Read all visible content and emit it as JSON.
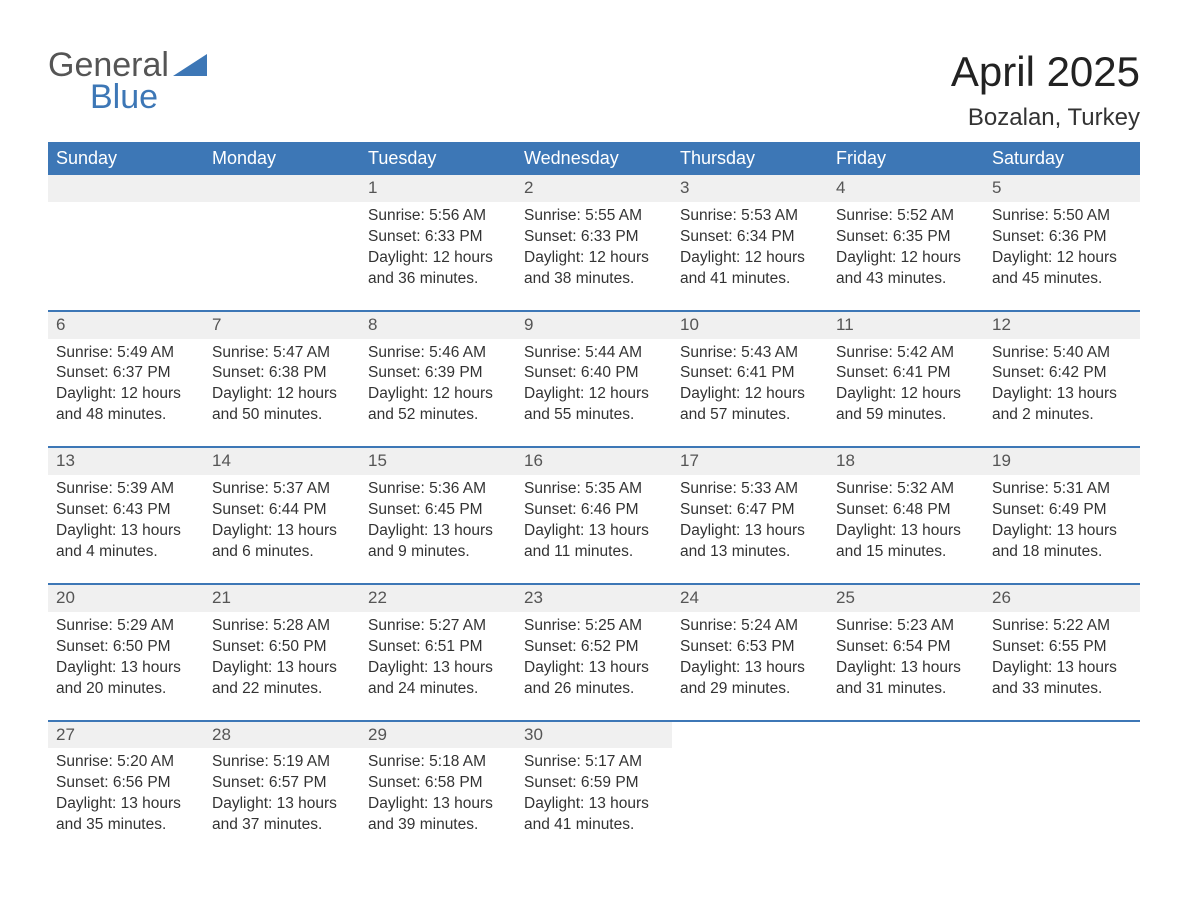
{
  "logo": {
    "line1": "General",
    "line2": "Blue",
    "brand_color": "#3d77b6",
    "gray": "#555555"
  },
  "title": "April 2025",
  "subtitle": "Bozalan, Turkey",
  "header_bg": "#3d77b6",
  "header_fg": "#ffffff",
  "daynum_bg": "#f0f0f0",
  "text_color": "#333333",
  "row_border_color": "#3d77b6",
  "title_fontsize": 42,
  "subtitle_fontsize": 24,
  "days_of_week": [
    "Sunday",
    "Monday",
    "Tuesday",
    "Wednesday",
    "Thursday",
    "Friday",
    "Saturday"
  ],
  "weeks": [
    [
      null,
      null,
      {
        "n": "1",
        "sunrise": "Sunrise: 5:56 AM",
        "sunset": "Sunset: 6:33 PM",
        "d1": "Daylight: 12 hours",
        "d2": "and 36 minutes."
      },
      {
        "n": "2",
        "sunrise": "Sunrise: 5:55 AM",
        "sunset": "Sunset: 6:33 PM",
        "d1": "Daylight: 12 hours",
        "d2": "and 38 minutes."
      },
      {
        "n": "3",
        "sunrise": "Sunrise: 5:53 AM",
        "sunset": "Sunset: 6:34 PM",
        "d1": "Daylight: 12 hours",
        "d2": "and 41 minutes."
      },
      {
        "n": "4",
        "sunrise": "Sunrise: 5:52 AM",
        "sunset": "Sunset: 6:35 PM",
        "d1": "Daylight: 12 hours",
        "d2": "and 43 minutes."
      },
      {
        "n": "5",
        "sunrise": "Sunrise: 5:50 AM",
        "sunset": "Sunset: 6:36 PM",
        "d1": "Daylight: 12 hours",
        "d2": "and 45 minutes."
      }
    ],
    [
      {
        "n": "6",
        "sunrise": "Sunrise: 5:49 AM",
        "sunset": "Sunset: 6:37 PM",
        "d1": "Daylight: 12 hours",
        "d2": "and 48 minutes."
      },
      {
        "n": "7",
        "sunrise": "Sunrise: 5:47 AM",
        "sunset": "Sunset: 6:38 PM",
        "d1": "Daylight: 12 hours",
        "d2": "and 50 minutes."
      },
      {
        "n": "8",
        "sunrise": "Sunrise: 5:46 AM",
        "sunset": "Sunset: 6:39 PM",
        "d1": "Daylight: 12 hours",
        "d2": "and 52 minutes."
      },
      {
        "n": "9",
        "sunrise": "Sunrise: 5:44 AM",
        "sunset": "Sunset: 6:40 PM",
        "d1": "Daylight: 12 hours",
        "d2": "and 55 minutes."
      },
      {
        "n": "10",
        "sunrise": "Sunrise: 5:43 AM",
        "sunset": "Sunset: 6:41 PM",
        "d1": "Daylight: 12 hours",
        "d2": "and 57 minutes."
      },
      {
        "n": "11",
        "sunrise": "Sunrise: 5:42 AM",
        "sunset": "Sunset: 6:41 PM",
        "d1": "Daylight: 12 hours",
        "d2": "and 59 minutes."
      },
      {
        "n": "12",
        "sunrise": "Sunrise: 5:40 AM",
        "sunset": "Sunset: 6:42 PM",
        "d1": "Daylight: 13 hours",
        "d2": "and 2 minutes."
      }
    ],
    [
      {
        "n": "13",
        "sunrise": "Sunrise: 5:39 AM",
        "sunset": "Sunset: 6:43 PM",
        "d1": "Daylight: 13 hours",
        "d2": "and 4 minutes."
      },
      {
        "n": "14",
        "sunrise": "Sunrise: 5:37 AM",
        "sunset": "Sunset: 6:44 PM",
        "d1": "Daylight: 13 hours",
        "d2": "and 6 minutes."
      },
      {
        "n": "15",
        "sunrise": "Sunrise: 5:36 AM",
        "sunset": "Sunset: 6:45 PM",
        "d1": "Daylight: 13 hours",
        "d2": "and 9 minutes."
      },
      {
        "n": "16",
        "sunrise": "Sunrise: 5:35 AM",
        "sunset": "Sunset: 6:46 PM",
        "d1": "Daylight: 13 hours",
        "d2": "and 11 minutes."
      },
      {
        "n": "17",
        "sunrise": "Sunrise: 5:33 AM",
        "sunset": "Sunset: 6:47 PM",
        "d1": "Daylight: 13 hours",
        "d2": "and 13 minutes."
      },
      {
        "n": "18",
        "sunrise": "Sunrise: 5:32 AM",
        "sunset": "Sunset: 6:48 PM",
        "d1": "Daylight: 13 hours",
        "d2": "and 15 minutes."
      },
      {
        "n": "19",
        "sunrise": "Sunrise: 5:31 AM",
        "sunset": "Sunset: 6:49 PM",
        "d1": "Daylight: 13 hours",
        "d2": "and 18 minutes."
      }
    ],
    [
      {
        "n": "20",
        "sunrise": "Sunrise: 5:29 AM",
        "sunset": "Sunset: 6:50 PM",
        "d1": "Daylight: 13 hours",
        "d2": "and 20 minutes."
      },
      {
        "n": "21",
        "sunrise": "Sunrise: 5:28 AM",
        "sunset": "Sunset: 6:50 PM",
        "d1": "Daylight: 13 hours",
        "d2": "and 22 minutes."
      },
      {
        "n": "22",
        "sunrise": "Sunrise: 5:27 AM",
        "sunset": "Sunset: 6:51 PM",
        "d1": "Daylight: 13 hours",
        "d2": "and 24 minutes."
      },
      {
        "n": "23",
        "sunrise": "Sunrise: 5:25 AM",
        "sunset": "Sunset: 6:52 PM",
        "d1": "Daylight: 13 hours",
        "d2": "and 26 minutes."
      },
      {
        "n": "24",
        "sunrise": "Sunrise: 5:24 AM",
        "sunset": "Sunset: 6:53 PM",
        "d1": "Daylight: 13 hours",
        "d2": "and 29 minutes."
      },
      {
        "n": "25",
        "sunrise": "Sunrise: 5:23 AM",
        "sunset": "Sunset: 6:54 PM",
        "d1": "Daylight: 13 hours",
        "d2": "and 31 minutes."
      },
      {
        "n": "26",
        "sunrise": "Sunrise: 5:22 AM",
        "sunset": "Sunset: 6:55 PM",
        "d1": "Daylight: 13 hours",
        "d2": "and 33 minutes."
      }
    ],
    [
      {
        "n": "27",
        "sunrise": "Sunrise: 5:20 AM",
        "sunset": "Sunset: 6:56 PM",
        "d1": "Daylight: 13 hours",
        "d2": "and 35 minutes."
      },
      {
        "n": "28",
        "sunrise": "Sunrise: 5:19 AM",
        "sunset": "Sunset: 6:57 PM",
        "d1": "Daylight: 13 hours",
        "d2": "and 37 minutes."
      },
      {
        "n": "29",
        "sunrise": "Sunrise: 5:18 AM",
        "sunset": "Sunset: 6:58 PM",
        "d1": "Daylight: 13 hours",
        "d2": "and 39 minutes."
      },
      {
        "n": "30",
        "sunrise": "Sunrise: 5:17 AM",
        "sunset": "Sunset: 6:59 PM",
        "d1": "Daylight: 13 hours",
        "d2": "and 41 minutes."
      },
      null,
      null,
      null
    ]
  ]
}
